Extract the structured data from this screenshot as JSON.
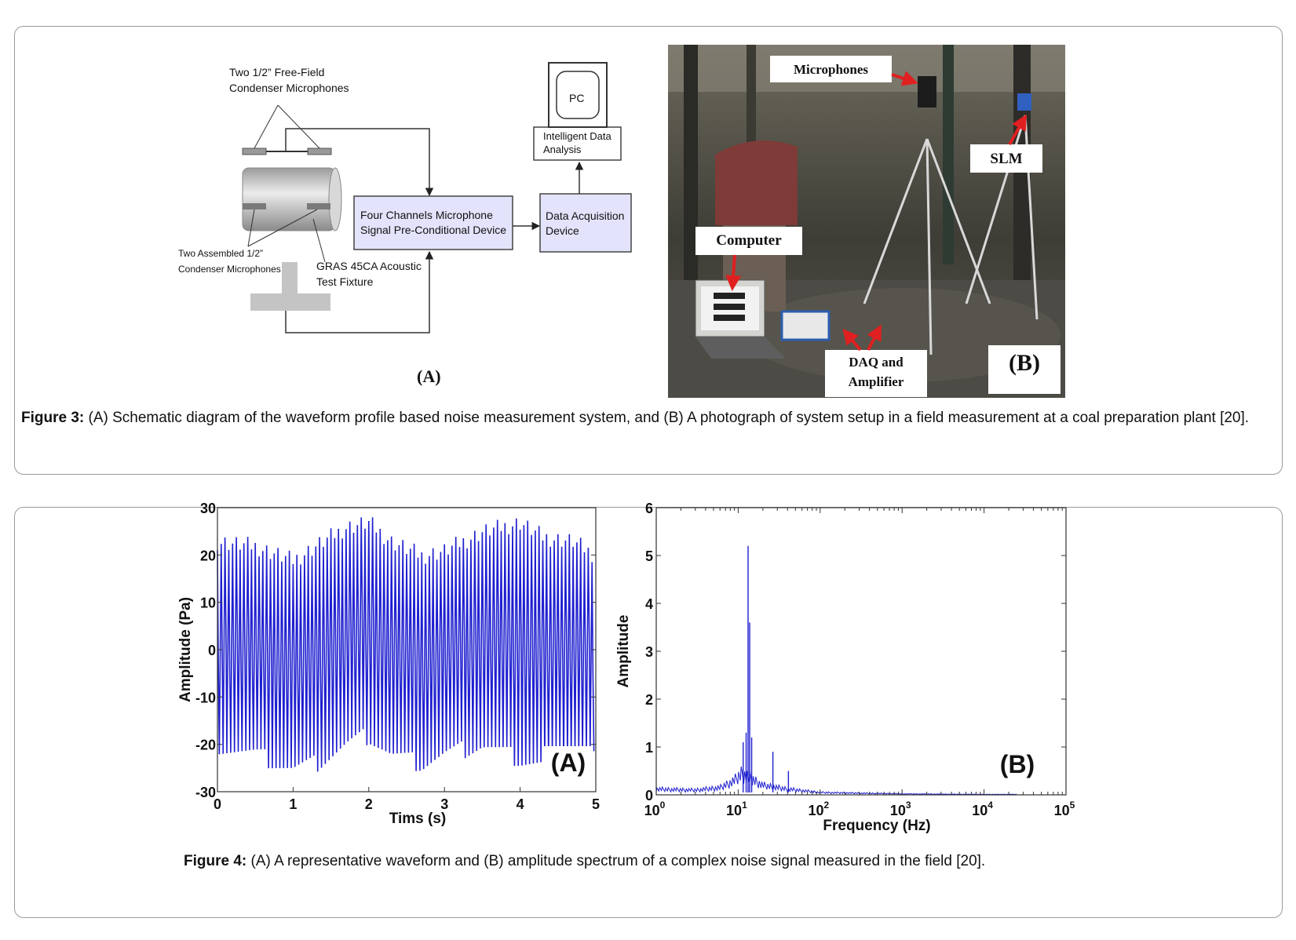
{
  "figure3": {
    "panel_a": {
      "label": "(A)",
      "mic_label_line1": "Two 1/2” Free-Field",
      "mic_label_line2": "Condenser Microphones",
      "assembled_line1": "Two Assembled 1/2”",
      "assembled_line2": "Condenser Microphones",
      "fixture_line1": "GRAS 45CA Acoustic",
      "fixture_line2": "Test Fixture",
      "precond_line1": "Four Channels Microphone",
      "precond_line2": "Signal Pre-Conditional Device",
      "daq_line1": "Data Acquisition",
      "daq_line2": "Device",
      "pc_label": "PC",
      "ida_line1": "Intelligent Data",
      "ida_line2": "Analysis"
    },
    "panel_b": {
      "label": "(B)",
      "microphones": "Microphones",
      "slm": "SLM",
      "computer": "Computer",
      "daq_line1": "DAQ and",
      "daq_line2": "Amplifier"
    },
    "caption_bold": "Figure 3:",
    "caption_text": " (A) Schematic diagram of the waveform profile based noise measurement system, and (B) A photograph of system setup in a field measurement at a coal preparation plant [20]."
  },
  "figure4": {
    "caption_bold": "Figure 4:",
    "caption_text": "  (A) A representative waveform and (B) amplitude spectrum of a complex noise signal measured in the field [20]."
  },
  "chart_data": [
    {
      "type": "line",
      "panel_label": "(A)",
      "title": "",
      "xlabel": "Tims (s)",
      "ylabel": "Amplitude (Pa)",
      "xlim": [
        0,
        5
      ],
      "ylim": [
        -30,
        30
      ],
      "x_ticks": [
        "0",
        "1",
        "2",
        "3",
        "4",
        "5"
      ],
      "y_ticks": [
        "30",
        "20",
        "10",
        "0",
        "-10",
        "-20",
        "-30"
      ],
      "color": "#1f1fd0",
      "signal": {
        "cycles": 100,
        "envelope_x": [
          0,
          0.5,
          1.0,
          1.3,
          1.7,
          2.0,
          2.3,
          2.7,
          3.0,
          3.5,
          4.0,
          4.3,
          4.7,
          5.0
        ],
        "envelope_peak": [
          23,
          22,
          19,
          22,
          26,
          27,
          23,
          20,
          21,
          25,
          27,
          24,
          23,
          20
        ],
        "envelope_trough": [
          -20,
          -22,
          -25,
          -24,
          -20,
          -18,
          -22,
          -24,
          -22,
          -20,
          -23,
          -24,
          -21,
          -22
        ]
      }
    },
    {
      "type": "line",
      "panel_label": "(B)",
      "title": "",
      "xlabel": "Frequency (Hz)",
      "ylabel": "Amplitude",
      "x_scale": "log",
      "xlim": [
        1,
        100000
      ],
      "ylim": [
        0,
        6
      ],
      "x_ticks": [
        "10^0",
        "10^1",
        "10^2",
        "10^3",
        "10^4",
        "10^5"
      ],
      "y_ticks": [
        "6",
        "5",
        "4",
        "3",
        "2",
        "1",
        "0"
      ],
      "color": "#1f1fd0",
      "peaks": [
        {
          "x": 11.5,
          "y": 1.1
        },
        {
          "x": 12.5,
          "y": 1.3
        },
        {
          "x": 13.2,
          "y": 5.2
        },
        {
          "x": 13.8,
          "y": 3.6
        },
        {
          "x": 14.6,
          "y": 1.2
        },
        {
          "x": 26.5,
          "y": 0.9
        },
        {
          "x": 41,
          "y": 0.5
        }
      ],
      "floor_x": [
        1,
        3,
        6,
        9,
        11,
        20,
        40,
        100,
        1000,
        10000,
        25000
      ],
      "floor_y": [
        0.12,
        0.1,
        0.15,
        0.3,
        0.45,
        0.2,
        0.12,
        0.05,
        0.02,
        0.01,
        0.01
      ]
    }
  ]
}
